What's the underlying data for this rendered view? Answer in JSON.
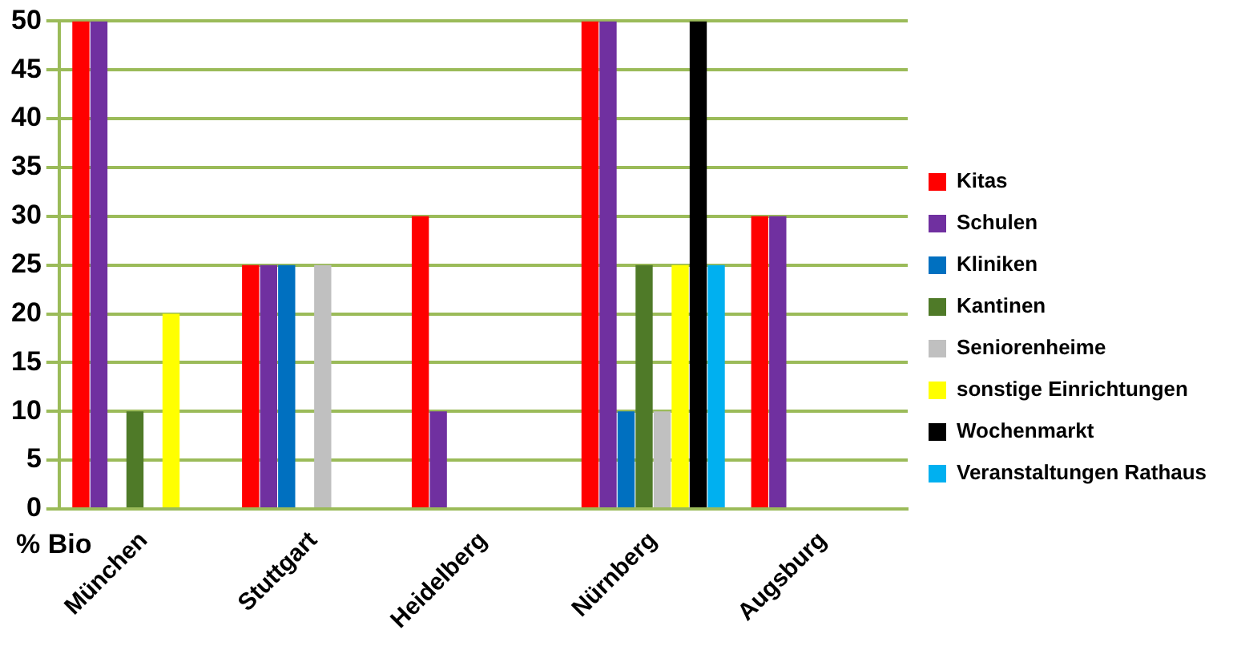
{
  "chart_data": {
    "type": "bar",
    "ylabel": "% Bio",
    "categories": [
      "München",
      "Stuttgart",
      "Heidelberg",
      "Nürnberg",
      "Augsburg"
    ],
    "series": [
      {
        "name": "Kitas",
        "color": "#ff0000",
        "values": [
          50,
          25,
          30,
          50,
          30
        ]
      },
      {
        "name": "Schulen",
        "color": "#7030a0",
        "values": [
          50,
          25,
          10,
          50,
          30
        ]
      },
      {
        "name": "Kliniken",
        "color": "#0070c0",
        "values": [
          null,
          25,
          null,
          10,
          null
        ]
      },
      {
        "name": "Kantinen",
        "color": "#4f7a28",
        "values": [
          10,
          null,
          null,
          25,
          null
        ]
      },
      {
        "name": "Seniorenheime",
        "color": "#c0c0c0",
        "values": [
          null,
          25,
          null,
          10,
          null
        ]
      },
      {
        "name": "sonstige Einrichtungen",
        "color": "#ffff00",
        "values": [
          20,
          null,
          null,
          25,
          null
        ]
      },
      {
        "name": "Wochenmarkt",
        "color": "#000000",
        "values": [
          null,
          null,
          null,
          50,
          null
        ]
      },
      {
        "name": "Veranstaltungen Rathaus",
        "color": "#00b0f0",
        "values": [
          null,
          null,
          null,
          25,
          null
        ]
      }
    ],
    "ylim": [
      0,
      50
    ],
    "yticks": [
      0,
      5,
      10,
      15,
      20,
      25,
      30,
      35,
      40,
      45,
      50
    ],
    "grid": "y",
    "legend": "right"
  }
}
